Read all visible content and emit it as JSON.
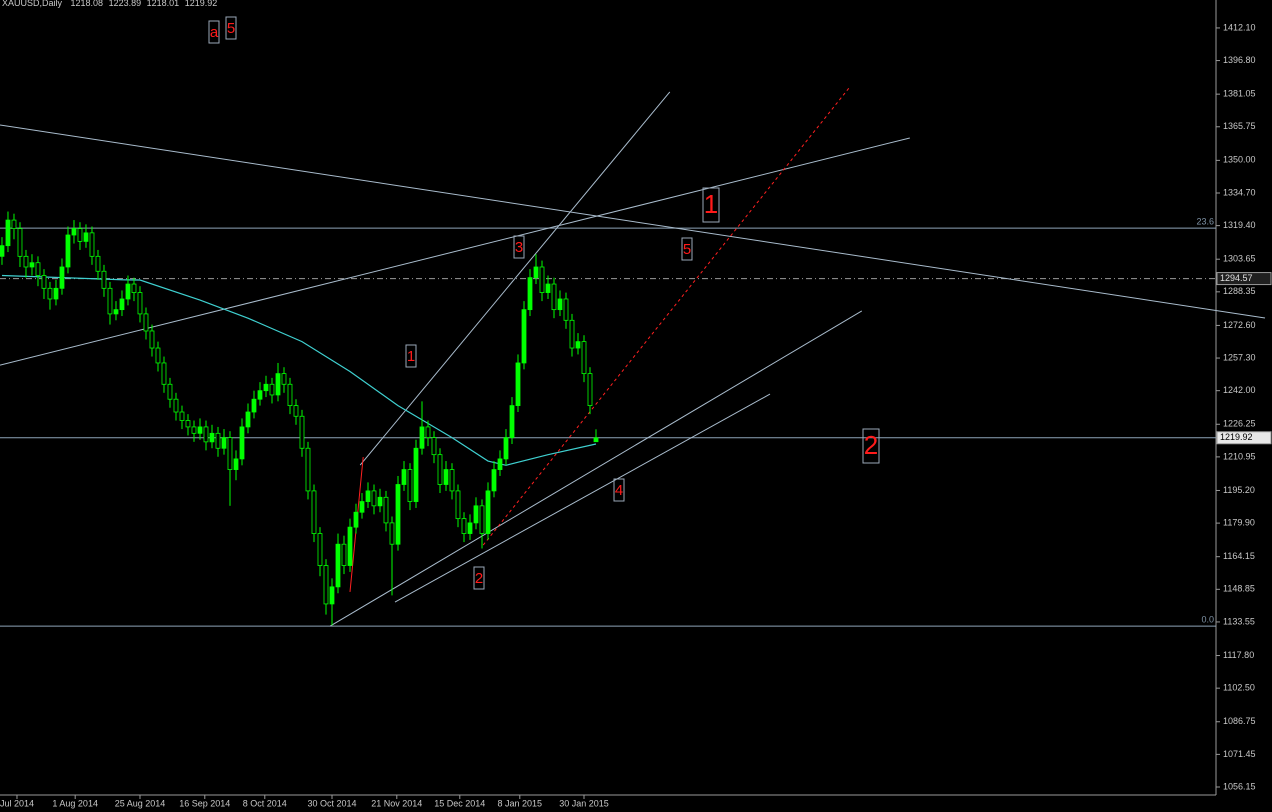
{
  "chart_data": {
    "type": "candlestick",
    "title": "XAUUSD,Daily",
    "candle_color": "#00ff00",
    "xlim": [
      -0.33,
      202.33
    ],
    "ylim": [
      1052.4,
      1425.2
    ],
    "yticks": [
      {
        "value": 1412.1,
        "label": "1412.10"
      },
      {
        "value": 1396.8,
        "label": "1396.80"
      },
      1381.05,
      1365.75,
      {
        "value": 1350,
        "label": "1350.00"
      },
      {
        "value": 1334.7,
        "label": "1334.70"
      },
      {
        "value": 1319.4,
        "label": "1319.40"
      },
      1303.65,
      1288.35,
      {
        "value": 1272.6,
        "label": "1272.60"
      },
      {
        "value": 1257.3,
        "label": "1257.30"
      },
      {
        "value": 1242,
        "label": "1242.00"
      },
      1226.25,
      1210.95,
      {
        "value": 1195.2,
        "label": "1195.20"
      },
      {
        "value": 1179.9,
        "label": "1179.90"
      },
      1164.15,
      1148.85,
      1133.55,
      {
        "value": 1117.8,
        "label": "1117.80"
      },
      {
        "value": 1102.5,
        "label": "1102.50"
      },
      1086.75,
      1071.45,
      1056.15
    ],
    "xticks": [
      {
        "value": 2.5,
        "label": "Jul 2014"
      },
      {
        "value": 12.2,
        "label": "1 Aug 2014"
      },
      {
        "value": 23,
        "label": "25 Aug 2014"
      },
      {
        "value": 33.8,
        "label": "16 Sep 2014"
      },
      {
        "value": 43.8,
        "label": "8 Oct 2014"
      },
      {
        "value": 55,
        "label": "30 Oct 2014"
      },
      {
        "value": 65.8,
        "label": "21 Nov 2014"
      },
      {
        "value": 76.3,
        "label": "15 Dec 2014"
      },
      {
        "value": 86.3,
        "label": "8 Jan 2015"
      },
      {
        "value": 97,
        "label": "30 Jan 2015"
      }
    ],
    "candles": [
      [
        1305,
        1314,
        1301,
        1310
      ],
      [
        1310,
        1326,
        1307,
        1322
      ],
      [
        1322,
        1325,
        1313,
        1318
      ],
      [
        1318,
        1321,
        1300,
        1305
      ],
      [
        1305,
        1308,
        1295,
        1300
      ],
      [
        1300,
        1306,
        1296,
        1302
      ],
      [
        1302,
        1305,
        1291,
        1296
      ],
      [
        1296,
        1299,
        1285,
        1290
      ],
      [
        1290,
        1293,
        1280,
        1285
      ],
      [
        1285,
        1294,
        1282,
        1290
      ],
      [
        1290,
        1304,
        1287,
        1300
      ],
      [
        1300,
        1319,
        1297,
        1315
      ],
      [
        1315,
        1322,
        1311,
        1318
      ],
      [
        1318,
        1321,
        1308,
        1312
      ],
      [
        1312,
        1320,
        1309,
        1316
      ],
      [
        1316,
        1319,
        1301,
        1305
      ],
      [
        1305,
        1308,
        1294,
        1298
      ],
      [
        1298,
        1301,
        1286,
        1290
      ],
      [
        1290,
        1293,
        1273,
        1278
      ],
      [
        1278,
        1284,
        1275,
        1280
      ],
      [
        1280,
        1289,
        1277,
        1285
      ],
      [
        1285,
        1296,
        1282,
        1292
      ],
      [
        1292,
        1295,
        1284,
        1288
      ],
      [
        1288,
        1291,
        1274,
        1278
      ],
      [
        1278,
        1281,
        1266,
        1270
      ],
      [
        1270,
        1273,
        1258,
        1262
      ],
      [
        1262,
        1265,
        1251,
        1255
      ],
      [
        1255,
        1258,
        1241,
        1245
      ],
      [
        1245,
        1248,
        1234,
        1238
      ],
      [
        1238,
        1241,
        1228,
        1232
      ],
      [
        1232,
        1235,
        1224,
        1228
      ],
      [
        1228,
        1231,
        1221,
        1225
      ],
      [
        1225,
        1228,
        1218,
        1222
      ],
      [
        1222,
        1229,
        1219,
        1225
      ],
      [
        1225,
        1228,
        1214,
        1218
      ],
      [
        1218,
        1226,
        1215,
        1222
      ],
      [
        1222,
        1225,
        1211,
        1215
      ],
      [
        1215,
        1224,
        1212,
        1220
      ],
      [
        1220,
        1223,
        1188,
        1205
      ],
      [
        1205,
        1214,
        1200,
        1210
      ],
      [
        1210,
        1229,
        1207,
        1225
      ],
      [
        1225,
        1236,
        1222,
        1232
      ],
      [
        1232,
        1242,
        1229,
        1238
      ],
      [
        1238,
        1246,
        1235,
        1242
      ],
      [
        1242,
        1249,
        1239,
        1245
      ],
      [
        1245,
        1248,
        1236,
        1240
      ],
      [
        1240,
        1255,
        1237,
        1250
      ],
      [
        1250,
        1253,
        1241,
        1245
      ],
      [
        1245,
        1248,
        1231,
        1235
      ],
      [
        1235,
        1238,
        1226,
        1230
      ],
      [
        1230,
        1233,
        1211,
        1215
      ],
      [
        1215,
        1218,
        1191,
        1195
      ],
      [
        1195,
        1198,
        1171,
        1175
      ],
      [
        1175,
        1178,
        1155,
        1160
      ],
      [
        1160,
        1163,
        1137,
        1142
      ],
      [
        1142,
        1154,
        1132,
        1150
      ],
      [
        1150,
        1175,
        1147,
        1170
      ],
      [
        1170,
        1174,
        1156,
        1160
      ],
      [
        1160,
        1182,
        1157,
        1178
      ],
      [
        1178,
        1189,
        1175,
        1185
      ],
      [
        1185,
        1194,
        1182,
        1190
      ],
      [
        1190,
        1199,
        1187,
        1195
      ],
      [
        1195,
        1198,
        1184,
        1188
      ],
      [
        1188,
        1196,
        1185,
        1192
      ],
      [
        1192,
        1195,
        1176,
        1180
      ],
      [
        1180,
        1183,
        1146,
        1170
      ],
      [
        1170,
        1202,
        1167,
        1198
      ],
      [
        1198,
        1209,
        1195,
        1205
      ],
      [
        1205,
        1208,
        1186,
        1190
      ],
      [
        1190,
        1219,
        1187,
        1215
      ],
      [
        1215,
        1237,
        1212,
        1225
      ],
      [
        1225,
        1228,
        1216,
        1220
      ],
      [
        1220,
        1223,
        1208,
        1212
      ],
      [
        1212,
        1215,
        1194,
        1198
      ],
      [
        1198,
        1209,
        1195,
        1205
      ],
      [
        1205,
        1208,
        1191,
        1195
      ],
      [
        1195,
        1198,
        1178,
        1182
      ],
      [
        1182,
        1185,
        1171,
        1175
      ],
      [
        1175,
        1184,
        1172,
        1180
      ],
      [
        1180,
        1192,
        1177,
        1188
      ],
      [
        1188,
        1191,
        1168,
        1175
      ],
      [
        1175,
        1199,
        1172,
        1195
      ],
      [
        1195,
        1209,
        1192,
        1205
      ],
      [
        1205,
        1214,
        1202,
        1210
      ],
      [
        1210,
        1224,
        1207,
        1220
      ],
      [
        1220,
        1239,
        1217,
        1235
      ],
      [
        1235,
        1259,
        1232,
        1255
      ],
      [
        1255,
        1284,
        1252,
        1280
      ],
      [
        1280,
        1299,
        1277,
        1295
      ],
      [
        1295,
        1306,
        1292,
        1300
      ],
      [
        1300,
        1303,
        1284,
        1288
      ],
      [
        1288,
        1296,
        1285,
        1292
      ],
      [
        1292,
        1295,
        1276,
        1280
      ],
      [
        1280,
        1289,
        1277,
        1285
      ],
      [
        1285,
        1288,
        1271,
        1275
      ],
      [
        1275,
        1278,
        1258,
        1262
      ],
      [
        1262,
        1269,
        1259,
        1265
      ],
      [
        1265,
        1268,
        1246,
        1250
      ],
      [
        1250,
        1253,
        1231,
        1235
      ],
      [
        1218.08,
        1223.89,
        1218.01,
        1219.92
      ]
    ],
    "moving_average": {
      "color": "#3fd0d0",
      "x": [
        0,
        20,
        23,
        33,
        41,
        50,
        58,
        66,
        75,
        81,
        84,
        91,
        99
      ],
      "values": [
        1296,
        1294,
        1293.9,
        1284.5,
        1276,
        1265,
        1251,
        1235,
        1220,
        1209,
        1207,
        1212,
        1217
      ]
    },
    "lines": [
      {
        "x": [
          -0.33,
          210.5
        ],
        "y": [
          1366.6,
          1276.1
        ],
        "color": "#a9bccd",
        "dashed": false
      },
      {
        "x": [
          -0.33,
          151.3
        ],
        "y": [
          1254,
          1360.5
        ],
        "color": "#a9bccd",
        "dashed": false
      },
      {
        "x": [
          59.7,
          111.3
        ],
        "y": [
          1207.1,
          1382.1
        ],
        "color": "#a9bccd",
        "dashed": false
      },
      {
        "x": [
          54.7,
          143.3
        ],
        "y": [
          1131.6,
          1279.4
        ],
        "color": "#a9bccd",
        "dashed": false
      },
      {
        "x": [
          65.5,
          128
        ],
        "y": [
          1142.9,
          1240.4
        ],
        "color": "#a9bccd",
        "dashed": false
      },
      {
        "x": [
          80.2,
          141.3
        ],
        "y": [
          1169.6,
          1384.4
        ],
        "color": "#ff2020",
        "dashed": true
      },
      {
        "x": [
          58,
          60.2
        ],
        "y": [
          1147.6,
          1210.9
        ],
        "color": "#ff2020",
        "dashed": false
      }
    ],
    "fib_levels": [
      {
        "value": 1318.2,
        "label": "23.6"
      },
      {
        "value": 1131.6,
        "label": "0.0"
      }
    ],
    "price_levels": [
      {
        "value": 1294.57,
        "dashed": true
      },
      {
        "value": 1219.92,
        "dashed": false
      }
    ],
    "wave_labels": [
      "a",
      "5",
      "1",
      "3",
      "5",
      "1",
      "2",
      "4",
      "2"
    ]
  }
}
